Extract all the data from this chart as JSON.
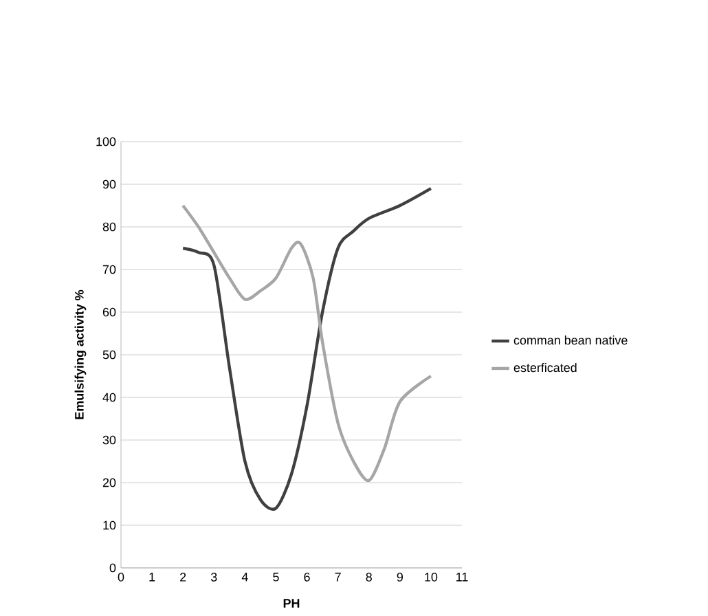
{
  "chart_data": {
    "type": "line",
    "xlabel": "PH",
    "ylabel": "Emulsifying activity %",
    "xlim": [
      0,
      11
    ],
    "ylim": [
      0,
      100
    ],
    "xticks": [
      0,
      1,
      2,
      3,
      4,
      5,
      6,
      7,
      8,
      9,
      10,
      11
    ],
    "yticks": [
      0,
      10,
      20,
      30,
      40,
      50,
      60,
      70,
      80,
      90,
      100
    ],
    "grid": "y",
    "legend": "right",
    "marker": "none",
    "line_style": "solid",
    "series": [
      {
        "name": "comman bean native",
        "color": "#404040",
        "x": [
          2,
          2.5,
          3,
          3.5,
          4,
          4.5,
          5,
          5.5,
          6,
          6.5,
          7,
          7.5,
          8,
          9,
          10
        ],
        "values": [
          75,
          74,
          71,
          47,
          25,
          16,
          14,
          22,
          38,
          60,
          75,
          79,
          82,
          85,
          89
        ]
      },
      {
        "name": "esterficated",
        "color": "#a6a6a6",
        "x": [
          2,
          2.5,
          3,
          3.5,
          4,
          4.5,
          5,
          5.5,
          5.8,
          6.2,
          6.5,
          7,
          7.5,
          8,
          8.5,
          9,
          10
        ],
        "values": [
          85,
          80,
          74,
          68,
          63,
          65,
          68,
          75,
          76,
          68,
          53,
          34,
          25,
          20.5,
          28,
          39,
          45
        ]
      }
    ]
  }
}
